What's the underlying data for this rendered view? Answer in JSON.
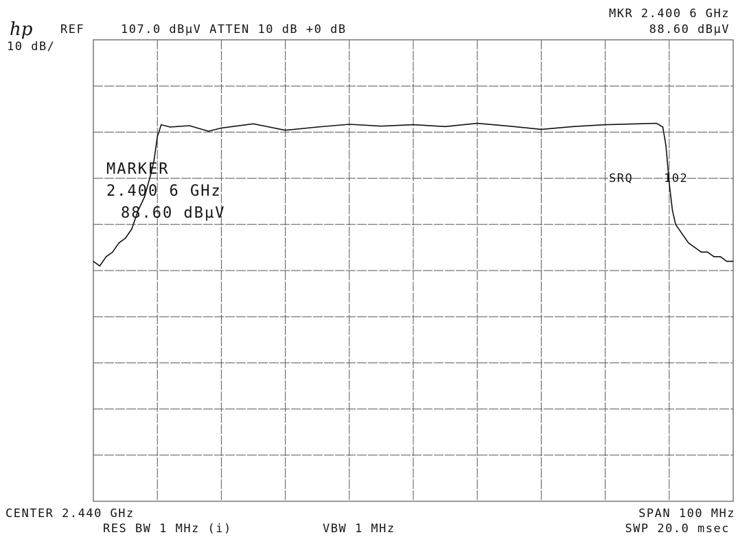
{
  "header": {
    "logo": "hp",
    "ref": "REF",
    "ref_value": "107.0 dBµV ATTEN 10 dB +0 dB",
    "scale": "10 dB/",
    "mkr_freq": "MKR 2.400 6 GHz",
    "mkr_level": "88.60 dBµV"
  },
  "marker": {
    "title": "MARKER",
    "freq": "2.400 6 GHz",
    "level": "88.60 dBµV"
  },
  "srq": {
    "label": "SRQ",
    "code": "102"
  },
  "footer": {
    "center": "CENTER 2.440 GHz",
    "span": "SPAN 100 MHz",
    "res_bw": "RES BW 1 MHz (i)",
    "vbw": "VBW 1 MHz",
    "sweep": "SWP 20.0 msec"
  },
  "colors": {
    "trace": "#111111",
    "grid": "#555555",
    "background": "#ffffff"
  },
  "chart_data": {
    "type": "line",
    "title": "",
    "xlabel": "",
    "ylabel": "",
    "x_unit": "GHz",
    "y_unit": "dBµV",
    "xlim": [
      2.39,
      2.49
    ],
    "ylim": [
      7.0,
      107.0
    ],
    "grid": true,
    "grid_divisions": {
      "x": 10,
      "y": 10
    },
    "series": [
      {
        "x": [
          2.39,
          2.391,
          2.392,
          2.393,
          2.394,
          2.395,
          2.396,
          2.397,
          2.398,
          2.399,
          2.3995,
          2.4,
          2.4006,
          2.402,
          2.405,
          2.408,
          2.41,
          2.415,
          2.42,
          2.425,
          2.43,
          2.435,
          2.44,
          2.445,
          2.45,
          2.455,
          2.46,
          2.465,
          2.47,
          2.475,
          2.478,
          2.479,
          2.4795,
          2.48,
          2.4805,
          2.481,
          2.482,
          2.483,
          2.484,
          2.485,
          2.486,
          2.487,
          2.488,
          2.489,
          2.49
        ],
        "y": [
          59,
          58,
          60,
          61,
          63,
          64,
          66,
          70,
          73,
          78,
          81,
          86,
          88.6,
          88.1,
          88.4,
          87.2,
          87.9,
          88.8,
          87.4,
          88.1,
          88.7,
          88.3,
          88.6,
          88.2,
          88.9,
          88.3,
          87.6,
          88.2,
          88.6,
          88.8,
          88.9,
          88.1,
          84,
          76,
          70,
          67,
          65,
          63,
          62,
          61,
          61,
          60,
          60,
          59,
          59
        ]
      }
    ],
    "annotations": [
      "MARKER",
      "SRQ 102"
    ]
  }
}
